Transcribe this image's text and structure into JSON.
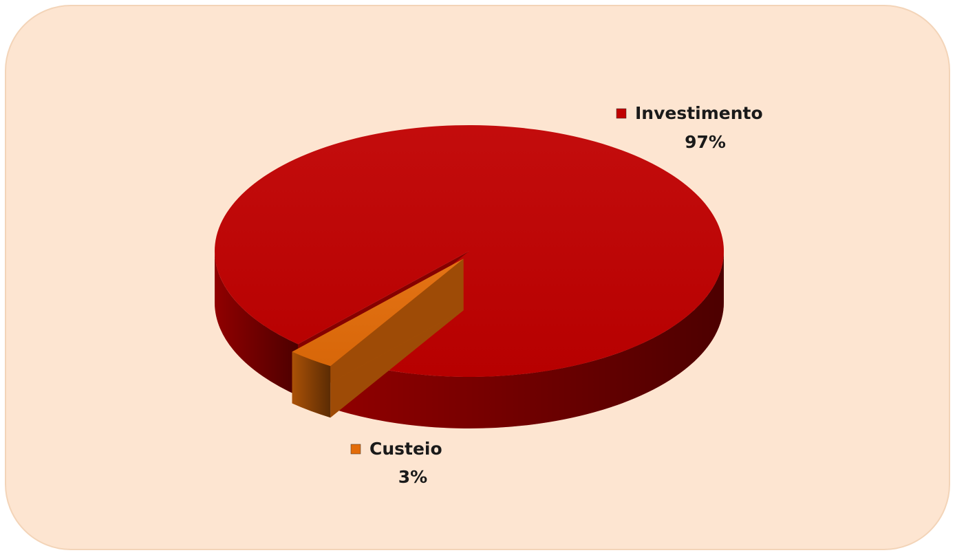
{
  "chart_data": {
    "type": "pie",
    "categories": [
      "Custeio",
      "Investimento"
    ],
    "values": [
      3,
      97
    ],
    "value_labels": [
      "3%",
      "97%"
    ],
    "colors": [
      "#e36c09",
      "#c00000"
    ]
  }
}
